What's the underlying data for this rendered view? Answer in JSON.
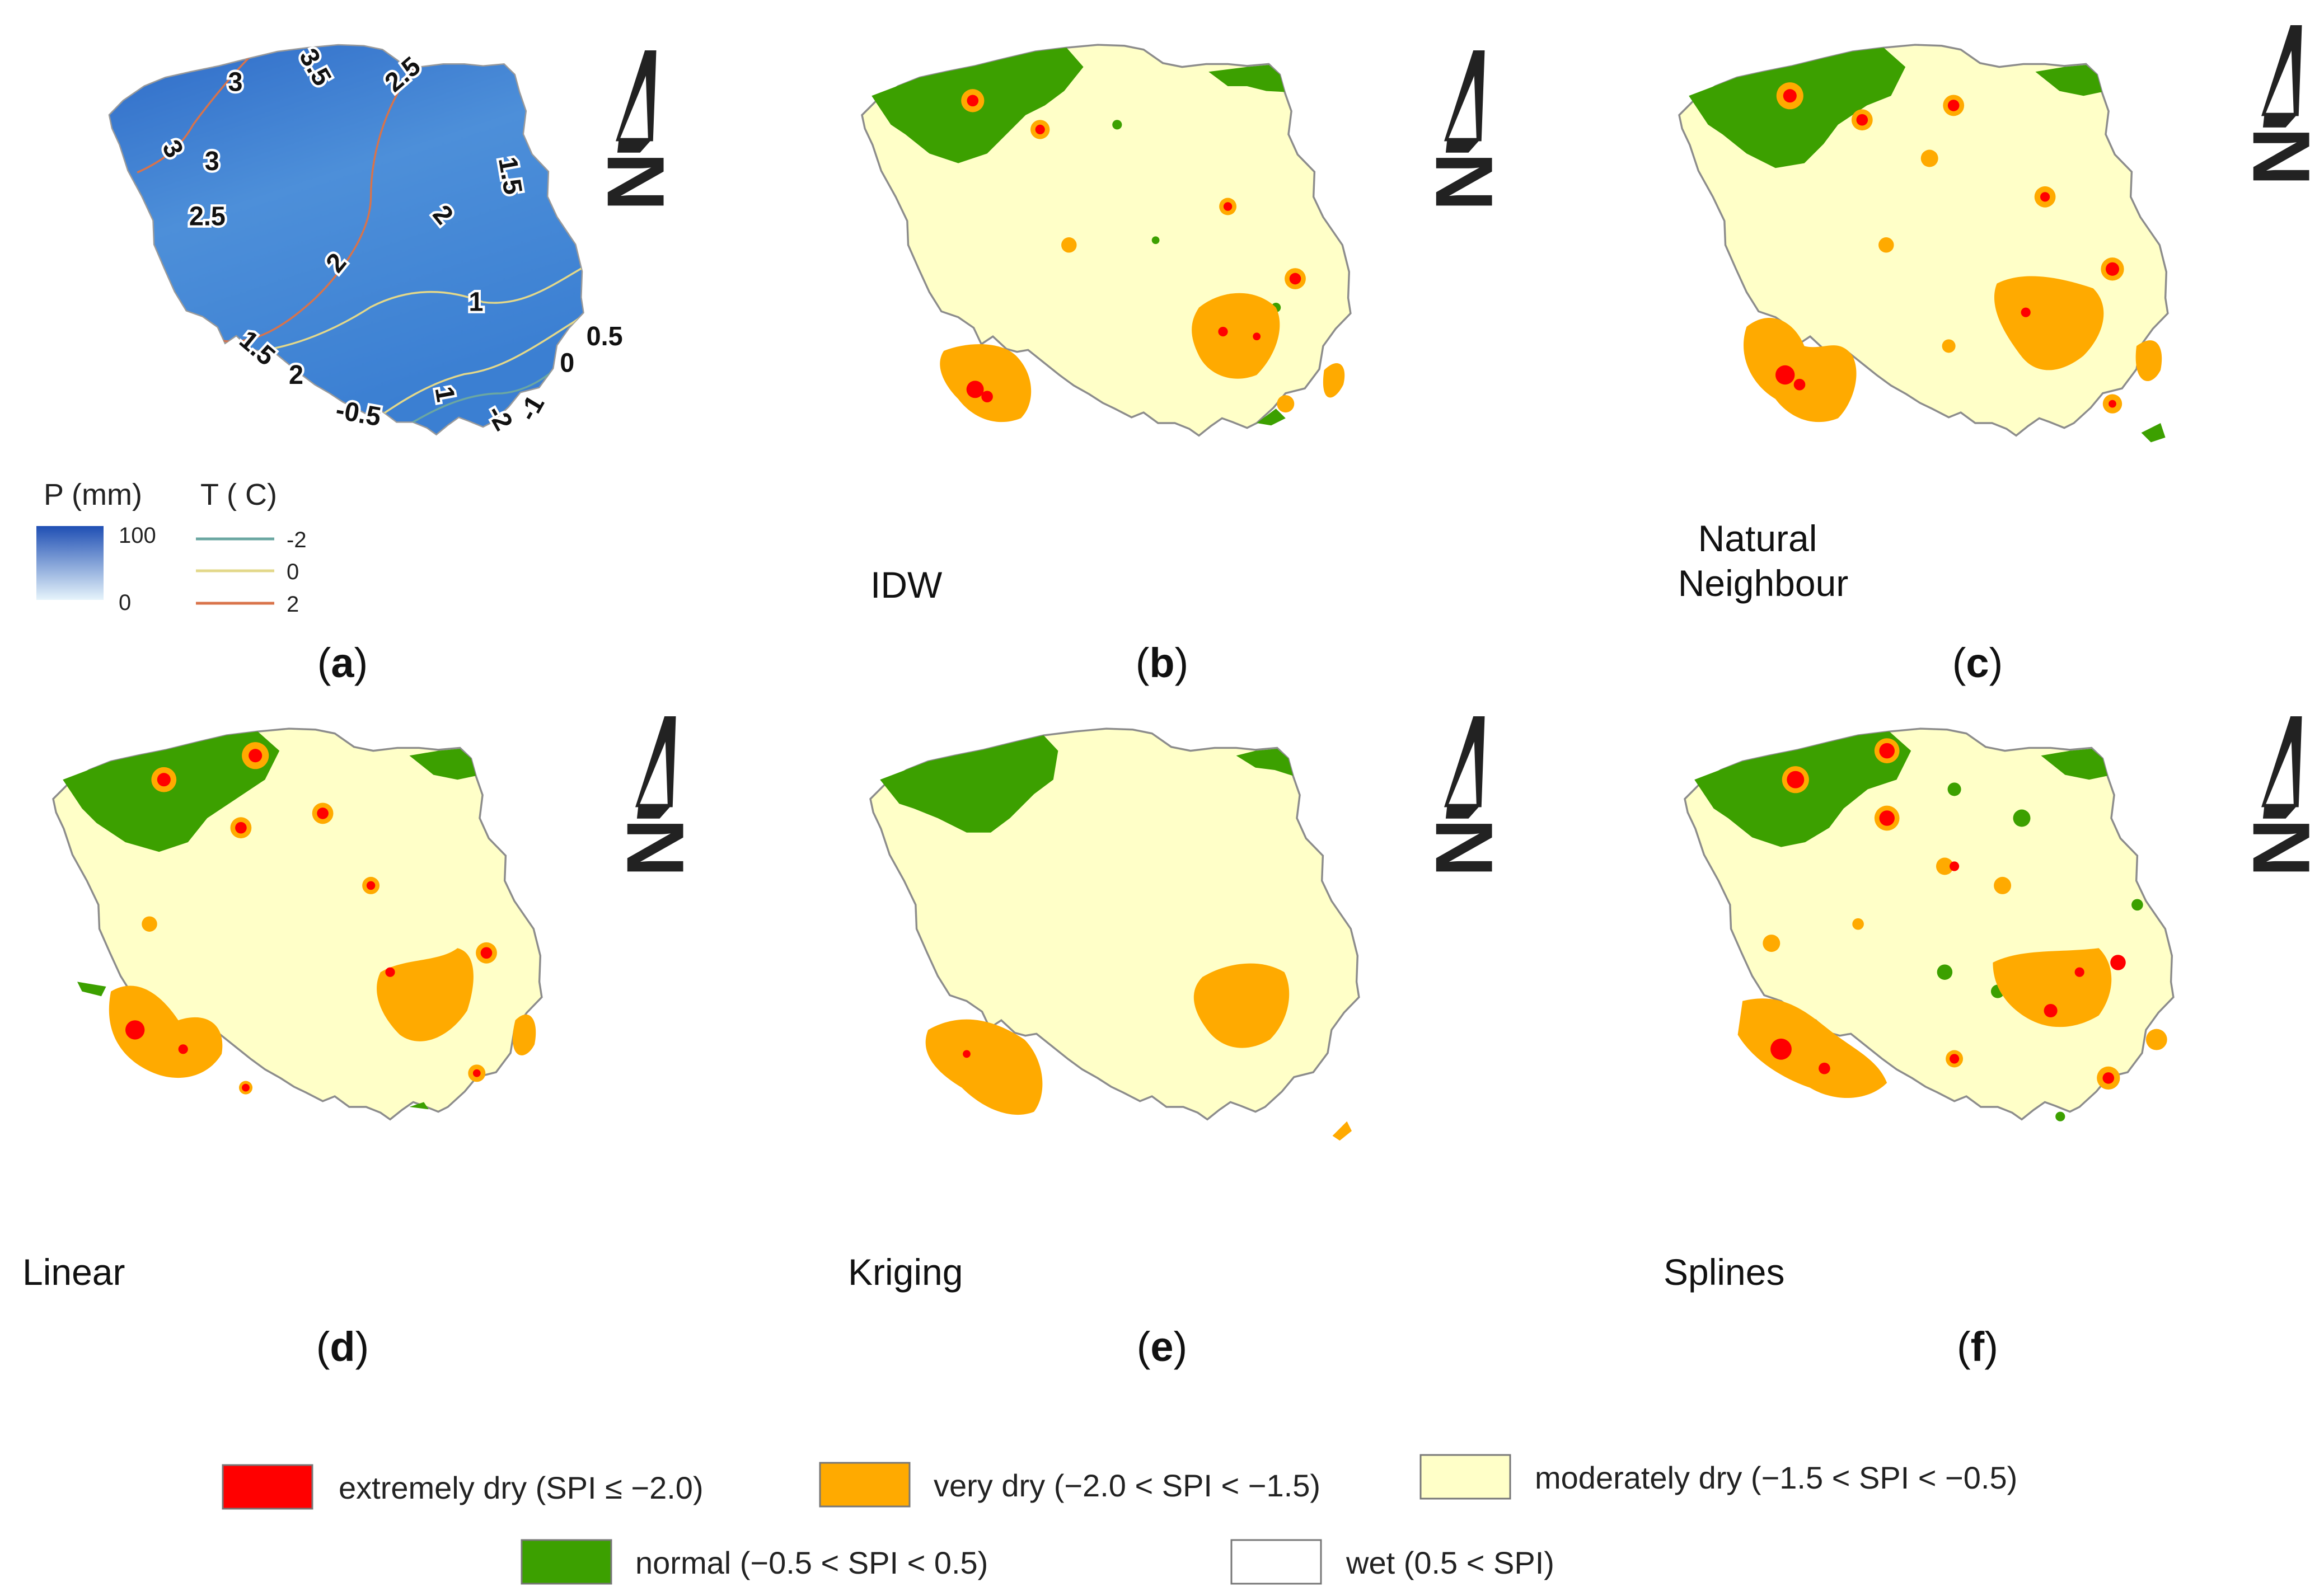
{
  "panels": [
    {
      "id": "a",
      "caption_letter": "a",
      "method_label": "",
      "precip_legend": {
        "title": "P (mm)",
        "max_label": "100",
        "min_label": "0",
        "color_high": "#1f4fb4",
        "color_low": "#e6f4fb"
      },
      "temp_legend": {
        "title": "T ( C)",
        "entries": [
          {
            "label": "-2",
            "color": "#6ba7a2"
          },
          {
            "label": "0",
            "color": "#e3d88a"
          },
          {
            "label": "2",
            "color": "#d9734a"
          }
        ]
      },
      "isotherm_labels": [
        "3",
        "3.5",
        "2.5",
        "3",
        "3",
        "2.5",
        "1.5",
        "2",
        "2",
        "1",
        "1.5",
        "2",
        "1",
        "0",
        "0.5",
        "-0.5",
        "-2",
        "-1"
      ]
    },
    {
      "id": "b",
      "caption_letter": "b",
      "method_label": "IDW"
    },
    {
      "id": "c",
      "caption_letter": "c",
      "method_label": "Natural Neighbour",
      "method_label_lines": [
        "Natural",
        "Neighbour"
      ]
    },
    {
      "id": "d",
      "caption_letter": "d",
      "method_label": "Linear"
    },
    {
      "id": "e",
      "caption_letter": "e",
      "method_label": "Kriging"
    },
    {
      "id": "f",
      "caption_letter": "f",
      "method_label": "Splines"
    }
  ],
  "colors": {
    "extremely_dry": "#ff0000",
    "very_dry": "#ffaa00",
    "moderately_dry": "#ffffc8",
    "normal": "#3ca000",
    "wet": "#ffffff",
    "border": "#8c8c8c"
  },
  "legend": [
    {
      "key": "extremely_dry",
      "label": "extremely dry (SPI ≤ −2.0)",
      "color": "#ff0000"
    },
    {
      "key": "very_dry",
      "label": "very dry (−2.0 < SPI < −1.5)",
      "color": "#ffaa00"
    },
    {
      "key": "moderately_dry",
      "label": "moderately dry (−1.5 < SPI < −0.5)",
      "color": "#ffffc8"
    },
    {
      "key": "normal",
      "label": "normal (−0.5 < SPI < 0.5)",
      "color": "#3ca000"
    },
    {
      "key": "wet",
      "label": "wet (0.5 < SPI)",
      "color": "#ffffff"
    }
  ],
  "north_arrow_label": "N"
}
